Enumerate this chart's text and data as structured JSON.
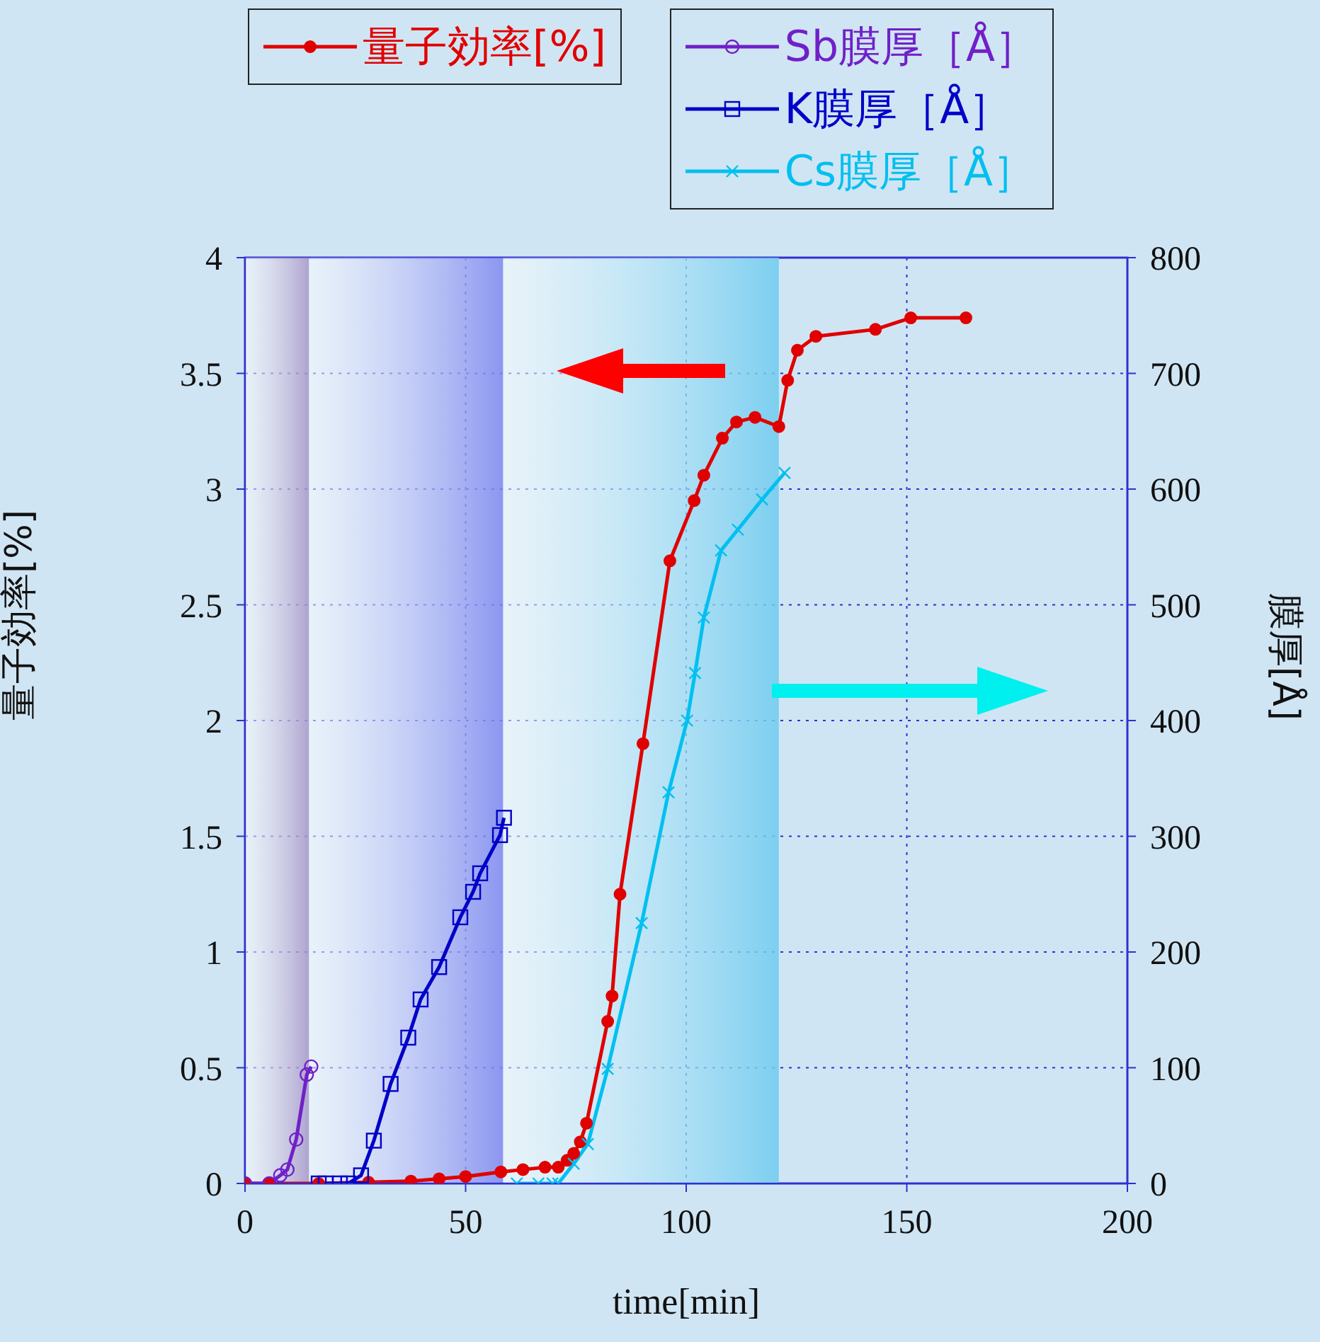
{
  "chart_data": {
    "type": "line",
    "xlabel": "time[min]",
    "ylabel": "量子効率[%]",
    "y2label": "膜厚[Å]",
    "xlim": [
      0,
      200
    ],
    "xticks": [
      0,
      50,
      100,
      150,
      200
    ],
    "ylim": [
      0,
      4
    ],
    "yticks": [
      0,
      0.5,
      1,
      1.5,
      2,
      2.5,
      3,
      3.5,
      4
    ],
    "y2lim": [
      0,
      800
    ],
    "y2ticks": [
      0,
      100,
      200,
      300,
      400,
      500,
      600,
      700,
      800
    ],
    "grid": true,
    "legend": "top",
    "line_style": "solid",
    "bands": [
      {
        "axis": "x",
        "from": 0,
        "to": 14.5,
        "color": "#a898c8"
      },
      {
        "axis": "x",
        "from": 14.5,
        "to": 58.5,
        "color": "#7f88f0"
      },
      {
        "axis": "x",
        "from": 58.5,
        "to": 121,
        "color": "#6ecbef"
      }
    ],
    "series": [
      {
        "name": "量子効率[%]",
        "color": "#e00000",
        "marker": "circle",
        "axis": "y",
        "x": [
          0,
          5.5,
          16.7,
          28,
          37.6,
          44,
          50,
          58,
          63,
          68,
          71,
          73,
          74.5,
          76,
          77.4,
          82.2,
          83.2,
          85,
          90.2,
          96.3,
          101.8,
          104,
          108.2,
          111.4,
          115.6,
          121,
          123,
          125.2,
          129.4,
          142.9,
          150.9,
          163.4
        ],
        "values": [
          0,
          0,
          0,
          0.005,
          0.01,
          0.02,
          0.03,
          0.05,
          0.06,
          0.07,
          0.07,
          0.1,
          0.13,
          0.18,
          0.26,
          0.7,
          0.81,
          1.25,
          1.9,
          2.69,
          2.95,
          3.06,
          3.22,
          3.29,
          3.31,
          3.27,
          3.47,
          3.6,
          3.66,
          3.69,
          3.74,
          3.74
        ]
      },
      {
        "name": "Sb膜厚［Å］",
        "color": "#7020c8",
        "marker": "circle_open",
        "axis": "y2",
        "x": [
          0,
          5.5,
          8,
          9.6,
          11.6,
          14,
          15
        ],
        "values": [
          0,
          0,
          7,
          12,
          38,
          94,
          101
        ]
      },
      {
        "name": "K膜厚［Å］",
        "color": "#0000c8",
        "marker": "square",
        "axis": "y2",
        "x": [
          16.7,
          18.3,
          21.5,
          23.4,
          26.3,
          29.2,
          33,
          37,
          39.8,
          44,
          48.8,
          51.7,
          53.3,
          57.8,
          58.7
        ],
        "values": [
          0,
          0,
          0,
          0,
          7,
          37,
          86,
          126,
          159,
          187,
          230,
          252,
          268,
          301,
          316
        ]
      },
      {
        "name": "Cs膜厚［Å］",
        "color": "#00c0f0",
        "marker": "cross",
        "axis": "y2",
        "x": [
          61.6,
          66.5,
          69.7,
          71,
          74.5,
          77.7,
          82.2,
          89.9,
          96,
          100.2,
          102,
          104,
          107.9,
          111.7,
          117.2,
          122.3
        ],
        "values": [
          0,
          0,
          0,
          0,
          17,
          34,
          99,
          225,
          338,
          400,
          441,
          489,
          547,
          565,
          591,
          614
        ]
      }
    ]
  }
}
